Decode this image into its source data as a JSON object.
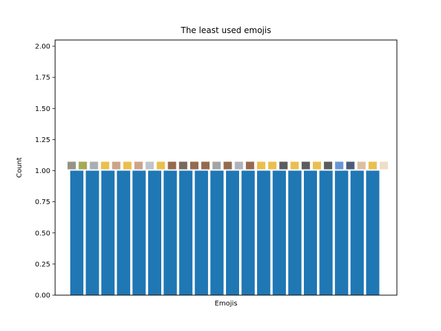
{
  "chart_data": {
    "type": "bar",
    "title": "The least used emojis",
    "xlabel": "Emojis",
    "ylabel": "Count",
    "ylim": [
      0,
      2.05
    ],
    "yticks": [
      "0.00",
      "0.25",
      "0.50",
      "0.75",
      "1.00",
      "1.25",
      "1.50",
      "1.75",
      "2.00"
    ],
    "ytick_values": [
      0,
      0.25,
      0.5,
      0.75,
      1.0,
      1.25,
      1.5,
      1.75,
      2.0
    ],
    "values": [
      1,
      1,
      1,
      1,
      1,
      1,
      1,
      1,
      1,
      1,
      1,
      1,
      1,
      1,
      1,
      1,
      1,
      1,
      1,
      1,
      1,
      1,
      1,
      1,
      1,
      1,
      1,
      1,
      1,
      1,
      1,
      1,
      1,
      1,
      1,
      1,
      1,
      1,
      1,
      1
    ],
    "bar_color": "#1f77b4",
    "grid": false,
    "emoji_markers": [
      {
        "color": "#8a8a7a"
      },
      {
        "color": "#9aa040"
      },
      {
        "color": "#a0a4ac"
      },
      {
        "color": "#e8b83c"
      },
      {
        "color": "#c89a7c"
      },
      {
        "color": "#e8b83c"
      },
      {
        "color": "#c89a7c"
      },
      {
        "color": "#b8bcc4"
      },
      {
        "color": "#e8b83c"
      },
      {
        "color": "#8a5a3c"
      },
      {
        "color": "#6a5a4a"
      },
      {
        "color": "#8a5a3c"
      },
      {
        "color": "#8a5a3c"
      },
      {
        "color": "#9a9a9a"
      },
      {
        "color": "#8a5a3c"
      },
      {
        "color": "#a8aab0"
      },
      {
        "color": "#8a5a3c"
      },
      {
        "color": "#e8b83c"
      },
      {
        "color": "#e8b83c"
      },
      {
        "color": "#4a4a4a"
      },
      {
        "color": "#e8b83c"
      },
      {
        "color": "#4a4a4a"
      },
      {
        "color": "#e8b83c"
      },
      {
        "color": "#4a4a4a"
      },
      {
        "color": "#5a8ad0"
      },
      {
        "color": "#3a4a6a"
      },
      {
        "color": "#d8b898"
      },
      {
        "color": "#e8b83c"
      },
      {
        "color": "#f0d8c0"
      }
    ]
  }
}
